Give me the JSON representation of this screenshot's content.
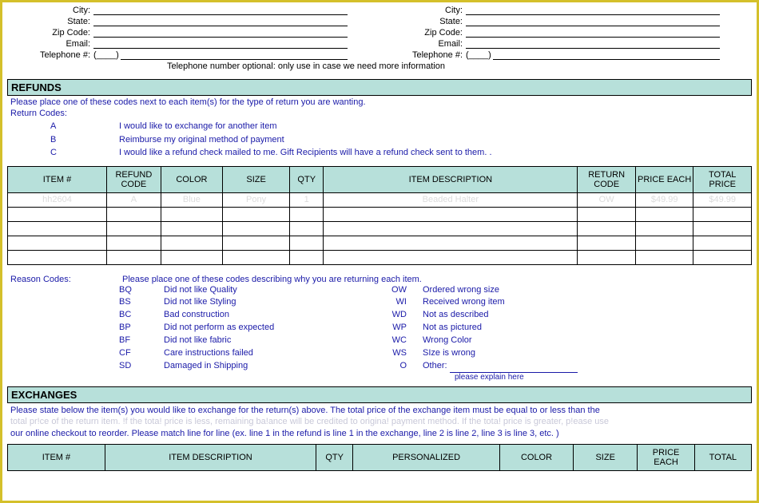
{
  "address": {
    "left": {
      "city_label": "City:",
      "state_label": "State:",
      "zip_label": "Zip Code:",
      "email_label": "Email:",
      "tel_label": "Telephone #:",
      "tel_paren": "(____)"
    },
    "right": {
      "city_label": "City:",
      "state_label": "State:",
      "zip_label": "Zip Code:",
      "email_label": "Email:",
      "tel_label": "Telephone #:",
      "tel_paren": "(____)"
    },
    "tel_note": "Telephone number optional: only use in case we need more information"
  },
  "refunds": {
    "header": "REFUNDS",
    "instruction": "Please place one of these codes next to each item(s) for the type of return you are wanting.",
    "codes_label": "Return Codes:",
    "codes": [
      {
        "code": "A",
        "desc": "I would like to exchange for another item"
      },
      {
        "code": "B",
        "desc": "Reimburse my original method of payment"
      },
      {
        "code": "C",
        "desc": "I would like a refund check mailed to me. Gift Recipients will have a refund check sent to them. ."
      }
    ],
    "table": {
      "headers": {
        "item_no": "ITEM #",
        "refund_code": "REFUND CODE",
        "color": "COLOR",
        "size": "SIZE",
        "qty": "QTY",
        "desc": "ITEM DESCRIPTION",
        "return_code": "RETURN CODE",
        "price_each": "PRICE EACH",
        "total_price": "TOTAL PRICE"
      },
      "widths": {
        "item_no": "106px",
        "refund_code": "58px",
        "color": "66px",
        "size": "72px",
        "qty": "36px",
        "desc": "272px",
        "return_code": "62px",
        "price_each": "62px",
        "total_price": "62px"
      },
      "rows": [
        {
          "item_no": "hh2604",
          "refund_code": "A",
          "color": "Blue",
          "size": "Pony",
          "qty": "1",
          "desc": "Beaded Halter",
          "return_code": "OW",
          "price_each": "$49.99",
          "total_price": "$49.99"
        },
        {
          "item_no": "",
          "refund_code": "",
          "color": "",
          "size": "",
          "qty": "",
          "desc": "",
          "return_code": "",
          "price_each": "",
          "total_price": ""
        },
        {
          "item_no": "",
          "refund_code": "",
          "color": "",
          "size": "",
          "qty": "",
          "desc": "",
          "return_code": "",
          "price_each": "",
          "total_price": ""
        },
        {
          "item_no": "",
          "refund_code": "",
          "color": "",
          "size": "",
          "qty": "",
          "desc": "",
          "return_code": "",
          "price_each": "",
          "total_price": ""
        },
        {
          "item_no": "",
          "refund_code": "",
          "color": "",
          "size": "",
          "qty": "",
          "desc": "",
          "return_code": "",
          "price_each": "",
          "total_price": ""
        }
      ]
    }
  },
  "reason": {
    "label": "Reason Codes:",
    "instruction": "Please place one of these codes describing why you are returning each item.",
    "rows": [
      {
        "c1": "BQ",
        "d1": "Did not like Quality",
        "c2": "OW",
        "d2": "Ordered wrong size"
      },
      {
        "c1": "BS",
        "d1": "Did not like Styling",
        "c2": "WI",
        "d2": "Received wrong item"
      },
      {
        "c1": "BC",
        "d1": "Bad construction",
        "c2": "WD",
        "d2": "Not as described"
      },
      {
        "c1": "BP",
        "d1": "Did not perform as expected",
        "c2": "WP",
        "d2": "Not as pictured"
      },
      {
        "c1": "BF",
        "d1": "Did not like fabric",
        "c2": "WC",
        "d2": "Wrong Color"
      },
      {
        "c1": "CF",
        "d1": "Care instructions failed",
        "c2": "WS",
        "d2": "SIze is wrong"
      },
      {
        "c1": "SD",
        "d1": "Damaged in Shipping",
        "c2": "O",
        "d2": "Other:"
      }
    ],
    "explain": "please explain here"
  },
  "exchanges": {
    "header": "EXCHANGES",
    "text_line1": "Please state below the item(s) you would like to exchange for the return(s) above. The total price of the exchange item must be equal to or less than the",
    "text_line2_faded": "total pr!ce of the return item. !f the tota! price is less, remaining ba!ance will be credited to origina! payment method. If the tota! price is greater, p!ease use",
    "text_line3": "our online checkout to reorder. Please match line for line (ex. line 1 in the refund is line 1 in the exchange, line 2 is line 2, line 3 is line 3, etc. )",
    "table": {
      "headers": {
        "item_no": "ITEM #",
        "desc": "ITEM DESCRIPTION",
        "qty": "QTY",
        "personalized": "PERSONALIZED",
        "color": "COLOR",
        "size": "SIZE",
        "price_each": "PRICE EACH",
        "total": "TOTAL"
      }
    }
  },
  "colors": {
    "header_bg": "#b7e0da",
    "border": "#000000",
    "link_text": "#1a1aa8",
    "ghost_text": "#dcdcdc",
    "frame": "#d4c02a"
  }
}
